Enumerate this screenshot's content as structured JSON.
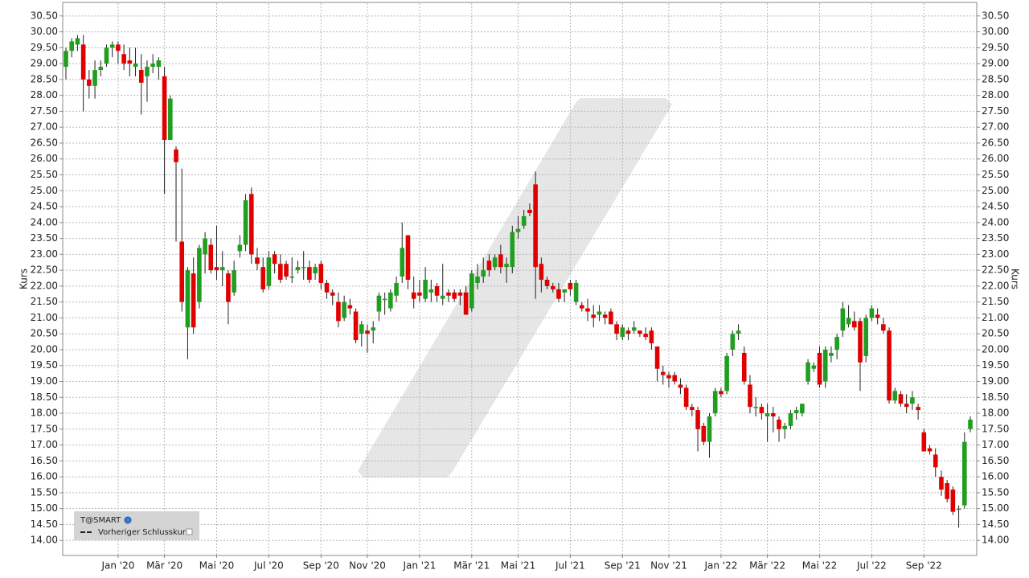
{
  "chart_data": {
    "type": "candlestick",
    "y_label": "Kurs",
    "up_color": "#1f9e1f",
    "down_color": "#e10000",
    "grid": true,
    "ylim": [
      13.55,
      30.9
    ],
    "yticks": [
      {
        "value": 14,
        "label": "14.00"
      },
      {
        "value": 14.5,
        "label": "14.50"
      },
      {
        "value": 15,
        "label": "15.00"
      },
      {
        "value": 15.5,
        "label": "15.50"
      },
      {
        "value": 16,
        "label": "16.00"
      },
      {
        "value": 16.5,
        "label": "16.50"
      },
      {
        "value": 17,
        "label": "17.00"
      },
      {
        "value": 17.5,
        "label": "17.50"
      },
      {
        "value": 18,
        "label": "18.00"
      },
      {
        "value": 18.5,
        "label": "18.50"
      },
      {
        "value": 19,
        "label": "19.00"
      },
      {
        "value": 19.5,
        "label": "19.50"
      },
      {
        "value": 20,
        "label": "20.00"
      },
      {
        "value": 20.5,
        "label": "20.50"
      },
      {
        "value": 21,
        "label": "21.00"
      },
      {
        "value": 21.5,
        "label": "21.50"
      },
      {
        "value": 22,
        "label": "22.00"
      },
      {
        "value": 22.5,
        "label": "22.50"
      },
      {
        "value": 23,
        "label": "23.00"
      },
      {
        "value": 23.5,
        "label": "23.50"
      },
      {
        "value": 24,
        "label": "24.00"
      },
      {
        "value": 24.5,
        "label": "24.50"
      },
      {
        "value": 25,
        "label": "25.00"
      },
      {
        "value": 25.5,
        "label": "25.50"
      },
      {
        "value": 26,
        "label": "26.00"
      },
      {
        "value": 26.5,
        "label": "26.50"
      },
      {
        "value": 27,
        "label": "27.00"
      },
      {
        "value": 27.5,
        "label": "27.50"
      },
      {
        "value": 28,
        "label": "28.00"
      },
      {
        "value": 28.5,
        "label": "28.50"
      },
      {
        "value": 29,
        "label": "29.00"
      },
      {
        "value": 29.5,
        "label": "29.50"
      },
      {
        "value": 30,
        "label": "30.00"
      },
      {
        "value": 30.5,
        "label": "30.50"
      }
    ],
    "categories": [
      null,
      null,
      null,
      null,
      null,
      null,
      null,
      null,
      null,
      "Jan '20",
      null,
      null,
      null,
      null,
      null,
      null,
      null,
      "Mär '20",
      null,
      null,
      null,
      null,
      null,
      null,
      null,
      null,
      "Mai '20",
      null,
      null,
      null,
      null,
      null,
      null,
      null,
      null,
      "Jul '20",
      null,
      null,
      null,
      null,
      null,
      null,
      null,
      null,
      "Sep '20",
      null,
      null,
      null,
      null,
      null,
      null,
      null,
      "Nov '20",
      null,
      null,
      null,
      null,
      null,
      null,
      null,
      null,
      "Jan '21",
      null,
      null,
      null,
      null,
      null,
      null,
      null,
      null,
      "Mär '21",
      null,
      null,
      null,
      null,
      null,
      null,
      null,
      "Mai '21",
      null,
      null,
      null,
      null,
      null,
      null,
      null,
      null,
      "Jul '21",
      null,
      null,
      null,
      null,
      null,
      null,
      null,
      null,
      "Sep '21",
      null,
      null,
      null,
      null,
      null,
      null,
      null,
      "Nov '21",
      null,
      null,
      null,
      null,
      null,
      null,
      null,
      null,
      "Jan '22",
      null,
      null,
      null,
      null,
      null,
      null,
      null,
      "Mär '22",
      null,
      null,
      null,
      null,
      null,
      null,
      null,
      null,
      "Mai '22",
      null,
      null,
      null,
      null,
      null,
      null,
      null,
      null,
      "Jul '22",
      null,
      null,
      null,
      null,
      null,
      null,
      null,
      null,
      "Sep '22",
      null,
      null,
      null,
      null,
      null,
      null,
      null,
      null
    ],
    "open": [
      28.9,
      29.4,
      29.6,
      29.6,
      28.5,
      28.3,
      28.8,
      29.0,
      29.5,
      29.6,
      29.3,
      29.1,
      28.9,
      28.8,
      28.6,
      28.9,
      28.9,
      28.6,
      26.6,
      26.3,
      23.4,
      20.7,
      22.4,
      21.5,
      23.0,
      23.3,
      22.6,
      22.5,
      22.4,
      21.8,
      23.1,
      23.3,
      24.9,
      22.9,
      22.6,
      22.0,
      23.0,
      22.7,
      22.7,
      22.3,
      22.5,
      22.6,
      22.6,
      22.4,
      22.7,
      22.1,
      21.8,
      21.5,
      21.0,
      21.4,
      21.2,
      20.5,
      20.6,
      20.6,
      21.2,
      21.6,
      21.3,
      21.7,
      22.3,
      23.6,
      21.8,
      21.8,
      21.6,
      21.8,
      22.0,
      21.6,
      21.8,
      21.8,
      21.8,
      21.8,
      21.3,
      22.1,
      22.3,
      22.8,
      22.6,
      23.0,
      22.6,
      22.6,
      23.7,
      23.9,
      24.4,
      25.2,
      22.7,
      22.2,
      22.0,
      21.9,
      21.8,
      22.1,
      21.5,
      21.4,
      21.3,
      21.1,
      21.1,
      21.1,
      21.2,
      20.8,
      20.4,
      20.6,
      20.6,
      20.6,
      20.5,
      20.6,
      20.1,
      19.3,
      19.2,
      19.2,
      18.9,
      18.8,
      18.2,
      18.1,
      17.6,
      17.1,
      18.0,
      18.7,
      18.7,
      20.0,
      20.5,
      19.9,
      18.9,
      18.2,
      18.2,
      17.9,
      18.0,
      17.8,
      17.5,
      17.6,
      18.0,
      18.0,
      19.0,
      19.4,
      19.9,
      19.0,
      19.8,
      20.0,
      20.6,
      20.8,
      20.9,
      20.9,
      19.8,
      21.0,
      21.1,
      20.8,
      20.6,
      18.4,
      18.6,
      18.3,
      18.3,
      18.2,
      17.4,
      16.9,
      16.7,
      16.0,
      15.8,
      15.6,
      15.0,
      15.1,
      17.5
    ],
    "high": [
      29.5,
      29.8,
      29.9,
      29.9,
      28.8,
      29.1,
      29.1,
      29.6,
      29.7,
      29.7,
      29.6,
      29.5,
      29.5,
      29.3,
      29.1,
      29.3,
      29.2,
      28.9,
      28.0,
      26.4,
      25.7,
      22.6,
      22.9,
      23.3,
      23.7,
      23.5,
      23.9,
      23.1,
      22.5,
      22.8,
      23.6,
      24.9,
      25.1,
      23.2,
      22.9,
      23.1,
      23.1,
      23.0,
      22.8,
      22.9,
      22.8,
      23.1,
      22.8,
      22.7,
      22.8,
      22.2,
      21.9,
      21.8,
      21.7,
      21.6,
      21.3,
      20.9,
      20.8,
      20.9,
      21.8,
      21.8,
      21.9,
      22.3,
      24.0,
      23.6,
      22.3,
      22.2,
      22.6,
      22.2,
      22.1,
      22.7,
      21.9,
      21.9,
      21.9,
      22.0,
      22.5,
      22.7,
      22.9,
      23.0,
      23.0,
      23.3,
      22.9,
      23.9,
      24.2,
      24.4,
      24.6,
      25.6,
      22.9,
      22.3,
      22.1,
      22.1,
      21.9,
      22.2,
      22.2,
      21.5,
      21.6,
      21.4,
      21.4,
      21.2,
      21.3,
      20.9,
      20.8,
      20.7,
      20.9,
      20.6,
      20.7,
      20.7,
      20.1,
      19.5,
      19.3,
      19.3,
      19.1,
      18.9,
      18.3,
      18.2,
      17.7,
      18.0,
      18.8,
      18.8,
      19.9,
      20.6,
      20.8,
      20.1,
      19.2,
      18.5,
      18.3,
      18.3,
      18.2,
      17.9,
      17.7,
      18.1,
      18.2,
      18.3,
      19.7,
      19.6,
      20.1,
      20.1,
      20.1,
      20.5,
      21.5,
      21.4,
      21.2,
      21.0,
      21.1,
      21.4,
      21.3,
      21.0,
      20.7,
      18.8,
      18.7,
      18.6,
      18.7,
      18.3,
      17.5,
      17.0,
      16.9,
      16.2,
      15.9,
      15.7,
      15.1,
      17.4,
      17.9
    ],
    "low": [
      28.5,
      29.2,
      29.4,
      27.5,
      27.9,
      27.9,
      28.6,
      28.9,
      29.2,
      29.0,
      28.8,
      28.6,
      28.6,
      27.4,
      27.8,
      28.7,
      28.5,
      24.9,
      26.6,
      23.4,
      21.2,
      19.7,
      20.5,
      21.3,
      22.4,
      22.4,
      22.2,
      22.0,
      20.8,
      21.7,
      22.9,
      23.1,
      22.7,
      22.5,
      21.8,
      21.9,
      22.4,
      22.1,
      22.2,
      22.1,
      22.4,
      22.2,
      22.1,
      22.2,
      21.9,
      21.6,
      21.4,
      20.7,
      20.9,
      21.1,
      20.2,
      20.1,
      19.9,
      20.2,
      20.9,
      21.1,
      21.2,
      21.5,
      22.1,
      21.9,
      21.3,
      21.5,
      21.5,
      21.5,
      21.5,
      21.4,
      21.5,
      21.5,
      21.4,
      21.1,
      21.2,
      21.9,
      22.1,
      22.3,
      22.5,
      22.4,
      22.1,
      22.4,
      23.5,
      23.8,
      24.2,
      21.6,
      21.8,
      21.9,
      21.8,
      21.5,
      21.5,
      21.7,
      21.4,
      21.2,
      20.9,
      20.7,
      20.9,
      20.8,
      20.8,
      20.3,
      20.3,
      20.3,
      20.5,
      20.4,
      20.3,
      20.0,
      19.0,
      18.9,
      18.8,
      18.9,
      18.6,
      18.1,
      17.9,
      16.8,
      17.0,
      16.6,
      17.9,
      18.5,
      18.6,
      19.8,
      20.3,
      18.9,
      18.0,
      17.9,
      17.8,
      17.1,
      17.4,
      17.1,
      17.2,
      17.5,
      17.8,
      17.9,
      18.9,
      19.3,
      18.8,
      18.8,
      19.6,
      19.7,
      20.4,
      20.7,
      20.6,
      18.7,
      19.6,
      20.9,
      20.8,
      20.5,
      18.3,
      18.3,
      18.2,
      18.0,
      18.1,
      17.8,
      16.8,
      16.7,
      16.0,
      15.4,
      15.2,
      14.8,
      14.4,
      15.0,
      17.4
    ],
    "close": [
      29.4,
      29.7,
      29.8,
      28.5,
      28.3,
      28.8,
      28.9,
      29.5,
      29.6,
      29.4,
      29.0,
      29.0,
      29.0,
      28.4,
      28.9,
      29.0,
      29.1,
      26.6,
      27.9,
      25.9,
      21.5,
      22.5,
      20.7,
      23.2,
      23.5,
      22.5,
      22.5,
      22.6,
      21.5,
      22.5,
      23.3,
      24.7,
      23.0,
      22.7,
      21.9,
      22.9,
      22.7,
      22.2,
      22.3,
      22.3,
      22.6,
      22.6,
      22.2,
      22.6,
      22.1,
      21.8,
      21.7,
      20.9,
      21.5,
      21.3,
      20.3,
      20.8,
      20.5,
      20.7,
      21.7,
      21.6,
      21.8,
      22.1,
      23.2,
      22.2,
      21.6,
      21.7,
      22.2,
      21.9,
      21.7,
      21.7,
      21.7,
      21.6,
      21.7,
      21.1,
      22.4,
      22.3,
      22.5,
      22.5,
      22.9,
      22.6,
      22.7,
      23.7,
      23.8,
      24.2,
      24.3,
      22.6,
      22.2,
      22.0,
      21.9,
      21.6,
      21.9,
      21.9,
      22.1,
      21.3,
      21.2,
      21.0,
      21.2,
      21.0,
      20.8,
      20.5,
      20.7,
      20.5,
      20.7,
      20.5,
      20.4,
      20.2,
      19.4,
      19.2,
      19.1,
      19.0,
      18.8,
      18.2,
      18.1,
      17.5,
      17.1,
      17.9,
      18.7,
      18.6,
      19.8,
      20.5,
      20.6,
      19.0,
      18.2,
      18.2,
      18.0,
      18.0,
      17.9,
      17.5,
      17.6,
      18.0,
      18.1,
      18.3,
      19.6,
      19.5,
      18.9,
      20.0,
      19.9,
      20.4,
      21.3,
      21.0,
      20.7,
      19.6,
      21.0,
      21.3,
      21.0,
      20.6,
      18.4,
      18.7,
      18.3,
      18.2,
      18.5,
      18.1,
      16.8,
      16.8,
      16.3,
      15.6,
      15.3,
      14.9,
      15.0,
      17.1,
      17.8
    ],
    "legend": {
      "name": "T@SMART",
      "label": "Vorheriger Schlusskurs"
    }
  }
}
